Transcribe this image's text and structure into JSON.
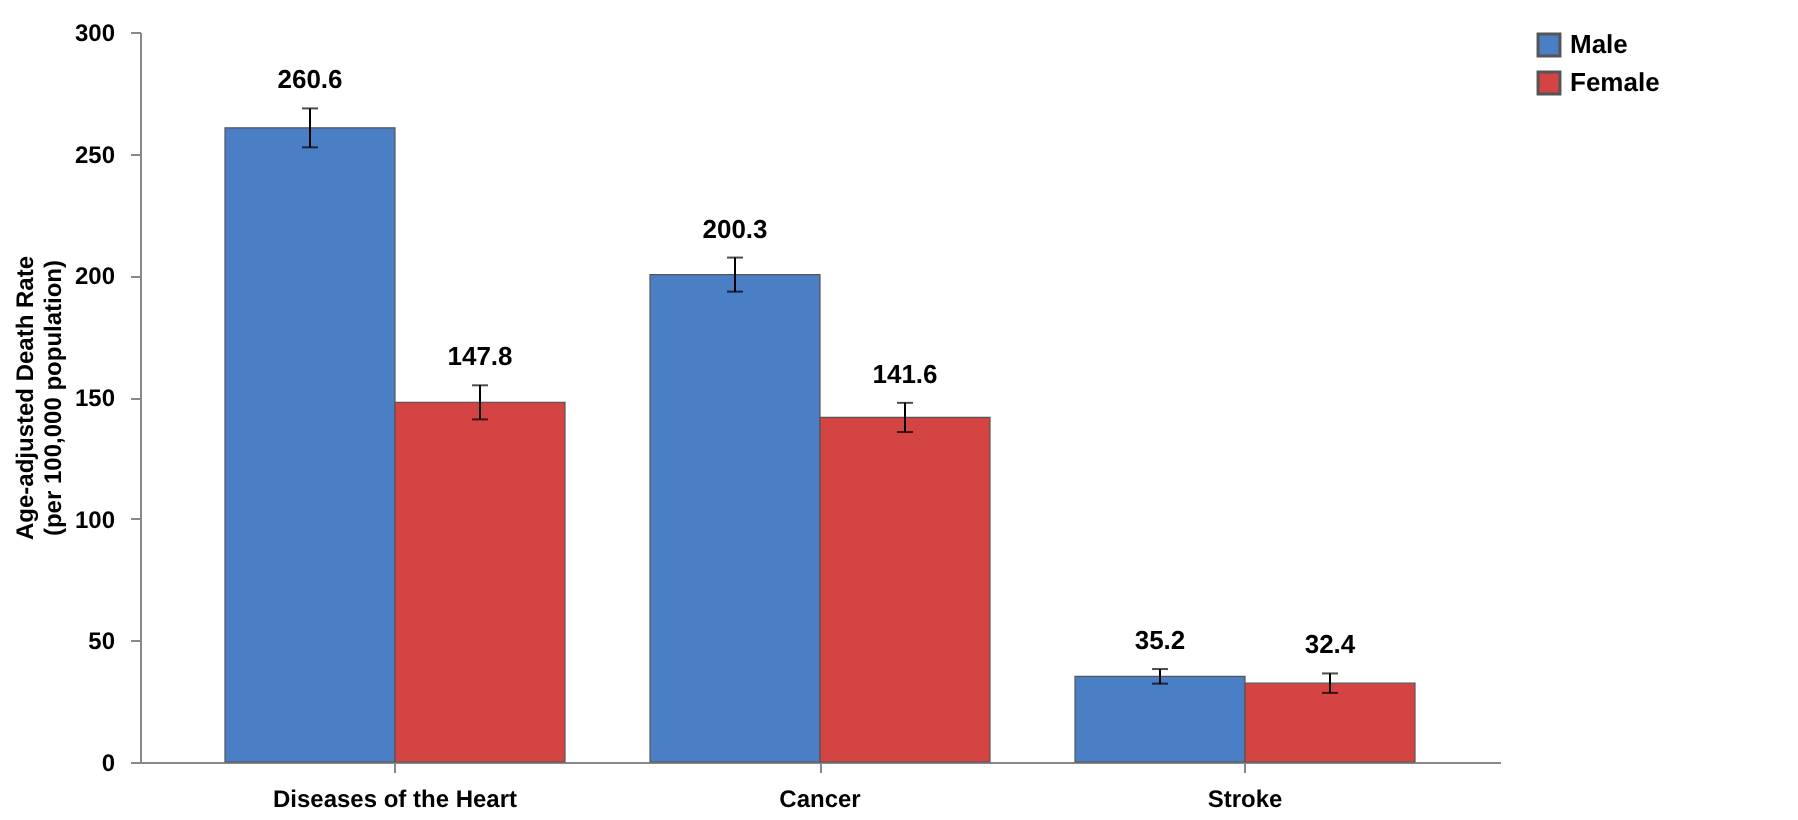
{
  "chart_data": {
    "type": "bar",
    "ylabel": "Age-adjusted Death Rate\n(per 100,000 population)",
    "categories": [
      "Diseases of the Heart",
      "Cancer",
      "Stroke"
    ],
    "series": [
      {
        "name": "Male",
        "color": "#4a7fc6",
        "values": [
          260.6,
          200.3,
          35.2
        ],
        "errors": [
          8,
          7,
          3
        ]
      },
      {
        "name": "Female",
        "color": "#d44442",
        "values": [
          147.8,
          141.6,
          32.4
        ],
        "errors": [
          7,
          6,
          4
        ]
      }
    ],
    "ylim": [
      0,
      300
    ],
    "yticks": [
      0,
      50,
      100,
      150,
      200,
      250,
      300
    ],
    "grid": false,
    "legend": "right",
    "data_labels": true
  }
}
